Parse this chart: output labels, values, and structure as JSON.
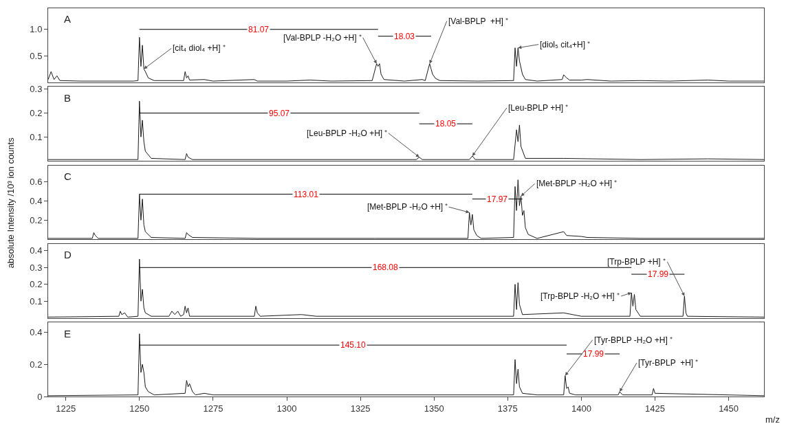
{
  "chart_data": [
    {
      "type": "line",
      "title": "A",
      "xlim": [
        1219,
        1462
      ],
      "ylim": [
        0,
        1.4
      ],
      "yticks": [
        0.5,
        {
          "value": 1.0,
          "label": "1.0"
        }
      ],
      "tick_labels": "y",
      "marker": "none",
      "series": [
        {
          "color": "#1a1a1a",
          "x": [
            1219,
            1220,
            1221,
            1222,
            1223,
            1230,
            1240,
            1248,
            1249.5,
            1250,
            1250.5,
            1251,
            1251.5,
            1252,
            1253,
            1255,
            1265,
            1265.5,
            1266,
            1266.5,
            1267,
            1272,
            1275,
            1289,
            1290,
            1300,
            1308,
            1315,
            1329,
            1330.5,
            1331,
            1331.5,
            1332,
            1333,
            1340,
            1346,
            1347,
            1348.5,
            1349,
            1349.5,
            1350.5,
            1352,
            1365,
            1377,
            1377.5,
            1378,
            1378.5,
            1379,
            1380,
            1381,
            1385,
            1393.5,
            1394,
            1395,
            1396,
            1400,
            1402,
            1410,
            1420,
            1430,
            1443,
            1450,
            1462
          ],
          "values": [
            0.05,
            0.2,
            0.05,
            0.12,
            0.03,
            0.02,
            0.02,
            0.02,
            0.03,
            0.85,
            0.3,
            0.7,
            0.25,
            0.2,
            0.08,
            0.03,
            0.03,
            0.2,
            0.08,
            0.12,
            0.04,
            0.05,
            0.02,
            0.05,
            0.02,
            0.02,
            0.04,
            0.02,
            0.03,
            0.35,
            0.3,
            0.35,
            0.15,
            0.05,
            0.02,
            0.05,
            0.03,
            0.35,
            0.25,
            0.15,
            0.07,
            0.03,
            0.02,
            0.03,
            0.65,
            0.3,
            0.65,
            0.4,
            0.15,
            0.05,
            0.02,
            0.05,
            0.14,
            0.08,
            0.04,
            0.04,
            0.05,
            0.02,
            0.03,
            0.02,
            0.04,
            0.02,
            0.02
          ]
        },
        {
          "color": "#000000",
          "x": [
            1250,
            1331
          ],
          "values": [
            1.0,
            1.0
          ]
        },
        {
          "color": "#000000",
          "x": [
            1331,
            1349
          ],
          "values": [
            0.87,
            0.87
          ]
        }
      ],
      "annotations": [
        {
          "text": "81.07",
          "x": 1290.5,
          "y": 1.0
        },
        {
          "text": "18.03",
          "x": 1340,
          "y": 0.87
        },
        {
          "text": "[cit₄ diol₄ +H] ⁺",
          "x": 1251.5,
          "y": 0.25
        },
        {
          "text": "[Val-BPLP -H₂O +H] ⁺",
          "x": 1330.5,
          "y": 0.35
        },
        {
          "text": "[Val-BPLP  +H] ⁺",
          "x": 1348.5,
          "y": 0.35
        },
        {
          "text": "[diol₅ cit₄+H] ⁺",
          "x": 1378.5,
          "y": 0.65
        }
      ]
    },
    {
      "type": "line",
      "title": "B",
      "xlim": [
        1219,
        1462
      ],
      "ylim": [
        0,
        0.31
      ],
      "yticks": [
        0.1,
        0.2,
        0.3
      ],
      "tick_labels": "y",
      "marker": "none",
      "series": [
        {
          "color": "#1a1a1a",
          "x": [
            1219,
            1230,
            1249.5,
            1250,
            1250.5,
            1251,
            1251.5,
            1252,
            1254,
            1265.5,
            1266,
            1266.5,
            1268,
            1300,
            1344,
            1345,
            1346,
            1362,
            1363,
            1364,
            1377,
            1378,
            1378.5,
            1379,
            1379.5,
            1381,
            1394,
            1420,
            1443,
            1462
          ],
          "values": [
            0.005,
            0.005,
            0.005,
            0.25,
            0.1,
            0.17,
            0.08,
            0.04,
            0.01,
            0.005,
            0.03,
            0.015,
            0.005,
            0.005,
            0.005,
            0.015,
            0.005,
            0.005,
            0.02,
            0.005,
            0.005,
            0.13,
            0.08,
            0.15,
            0.06,
            0.01,
            0.01,
            0.005,
            0.008,
            0.005
          ]
        },
        {
          "color": "#000000",
          "x": [
            1250,
            1345
          ],
          "values": [
            0.2,
            0.2
          ]
        },
        {
          "color": "#000000",
          "x": [
            1345,
            1363
          ],
          "values": [
            0.155,
            0.155
          ]
        }
      ],
      "annotations": [
        {
          "text": "95.07",
          "x": 1297.5,
          "y": 0.2
        },
        {
          "text": "18.05",
          "x": 1354,
          "y": 0.155
        },
        {
          "text": "[Leu-BPLP -H₂O +H] ⁺",
          "x": 1345,
          "y": 0.015
        },
        {
          "text": "[Leu-BPLP +H] ⁺",
          "x": 1363,
          "y": 0.02
        }
      ]
    },
    {
      "type": "line",
      "title": "C",
      "ylabel": "absolute Intensity /10³ ion counts",
      "xlim": [
        1219,
        1462
      ],
      "ylim": [
        0,
        0.77
      ],
      "yticks": [
        0.2,
        0.4,
        0.6
      ],
      "tick_labels": "y",
      "marker": "none",
      "series": [
        {
          "color": "#1a1a1a",
          "x": [
            1219,
            1234,
            1234.5,
            1235,
            1236,
            1249.5,
            1250,
            1250.5,
            1251,
            1251.5,
            1252,
            1254,
            1265.5,
            1266,
            1266.5,
            1268,
            1290,
            1330,
            1361.5,
            1362,
            1362.5,
            1363,
            1363.5,
            1364.5,
            1366,
            1377,
            1377.5,
            1378,
            1378.5,
            1379,
            1379.5,
            1380,
            1380.5,
            1381,
            1382,
            1385,
            1394,
            1395,
            1400,
            1402,
            1420,
            1462
          ],
          "values": [
            0.01,
            0.01,
            0.07,
            0.04,
            0.01,
            0.01,
            0.47,
            0.2,
            0.42,
            0.15,
            0.08,
            0.02,
            0.01,
            0.07,
            0.05,
            0.02,
            0.01,
            0.01,
            0.01,
            0.28,
            0.15,
            0.26,
            0.1,
            0.04,
            0.01,
            0.02,
            0.55,
            0.3,
            0.62,
            0.35,
            0.45,
            0.25,
            0.3,
            0.12,
            0.05,
            0.01,
            0.08,
            0.04,
            0.03,
            0.02,
            0.01,
            0.01
          ]
        },
        {
          "color": "#000000",
          "x": [
            1250,
            1363
          ],
          "values": [
            0.47,
            0.47
          ]
        },
        {
          "color": "#000000",
          "x": [
            1363,
            1380
          ],
          "values": [
            0.42,
            0.42
          ]
        }
      ],
      "annotations": [
        {
          "text": "113.01",
          "x": 1306.5,
          "y": 0.47
        },
        {
          "text": "17.97",
          "x": 1371.5,
          "y": 0.42
        },
        {
          "text": "[Met-BPLP -H₂O +H] ⁺",
          "x": 1362,
          "y": 0.28
        },
        {
          "text": "[Met-BPLP -H₂O +H] ⁺",
          "x": 1379.5,
          "y": 0.45
        }
      ]
    },
    {
      "type": "line",
      "title": "D",
      "xlim": [
        1219,
        1462
      ],
      "ylim": [
        0,
        0.44
      ],
      "yticks": [
        0.1,
        0.2,
        0.3,
        0.4
      ],
      "tick_labels": "y",
      "marker": "none",
      "series": [
        {
          "color": "#1a1a1a",
          "x": [
            1219,
            1243,
            1243.5,
            1244,
            1245,
            1246,
            1249.5,
            1250,
            1250.5,
            1251,
            1251.5,
            1252,
            1254,
            1260,
            1261,
            1262,
            1263,
            1264,
            1265,
            1265.5,
            1266,
            1266.5,
            1267,
            1289,
            1289.5,
            1290,
            1291,
            1305,
            1310,
            1377,
            1377.5,
            1378,
            1378.5,
            1379,
            1380,
            1394,
            1400,
            1416.5,
            1417,
            1417.5,
            1418,
            1418.5,
            1420,
            1434.5,
            1435,
            1435.5,
            1436,
            1462
          ],
          "values": [
            0.005,
            0.01,
            0.04,
            0.02,
            0.03,
            0.005,
            0.01,
            0.35,
            0.1,
            0.17,
            0.06,
            0.03,
            0.01,
            0.01,
            0.04,
            0.02,
            0.04,
            0.01,
            0.02,
            0.07,
            0.03,
            0.06,
            0.01,
            0.01,
            0.07,
            0.03,
            0.01,
            0.02,
            0.01,
            0.01,
            0.2,
            0.05,
            0.21,
            0.08,
            0.02,
            0.03,
            0.01,
            0.01,
            0.15,
            0.07,
            0.14,
            0.05,
            0.01,
            0.01,
            0.13,
            0.03,
            0.01,
            0.005
          ]
        },
        {
          "color": "#000000",
          "x": [
            1250,
            1417
          ],
          "values": [
            0.3,
            0.3
          ]
        },
        {
          "color": "#000000",
          "x": [
            1417,
            1435
          ],
          "values": [
            0.26,
            0.26
          ]
        }
      ],
      "annotations": [
        {
          "text": "168.08",
          "x": 1333.5,
          "y": 0.3
        },
        {
          "text": "17.99",
          "x": 1426,
          "y": 0.26
        },
        {
          "text": "[Trp-BPLP +H] ⁺",
          "x": 1435,
          "y": 0.13
        },
        {
          "text": "[Trp-BPLP -H₂O +H] ⁺",
          "x": 1417,
          "y": 0.15
        }
      ]
    },
    {
      "type": "line",
      "title": "E",
      "xlabel": "m/z",
      "xlim": [
        1219,
        1462
      ],
      "ylim": [
        0,
        0.46
      ],
      "xticks": [
        1225,
        1250,
        1275,
        1300,
        1325,
        1350,
        1375,
        1400,
        1425,
        1450
      ],
      "yticks": [
        0,
        0.2,
        0.4
      ],
      "marker": "none",
      "series": [
        {
          "color": "#1a1a1a",
          "x": [
            1219,
            1249.5,
            1250,
            1250.5,
            1251,
            1251.5,
            1252,
            1253,
            1255,
            1265.5,
            1266,
            1266.5,
            1267,
            1268,
            1269,
            1272,
            1275,
            1377,
            1377.5,
            1378,
            1378.5,
            1379,
            1380,
            1385,
            1394,
            1394.5,
            1395,
            1395.5,
            1396,
            1398,
            1412.5,
            1413,
            1414,
            1424,
            1424.5,
            1425,
            1462
          ],
          "values": [
            0.005,
            0.01,
            0.39,
            0.15,
            0.2,
            0.15,
            0.06,
            0.03,
            0.01,
            0.02,
            0.1,
            0.06,
            0.08,
            0.03,
            0.01,
            0.02,
            0.01,
            0.01,
            0.23,
            0.08,
            0.17,
            0.06,
            0.02,
            0.01,
            0.01,
            0.13,
            0.05,
            0.06,
            0.02,
            0.01,
            0.01,
            0.03,
            0.01,
            0.01,
            0.05,
            0.02,
            0.005
          ]
        },
        {
          "color": "#000000",
          "x": [
            1250,
            1395
          ],
          "values": [
            0.32,
            0.32
          ]
        },
        {
          "color": "#000000",
          "x": [
            1395,
            1413
          ],
          "values": [
            0.265,
            0.265
          ]
        }
      ],
      "annotations": [
        {
          "text": "145.10",
          "x": 1322.5,
          "y": 0.32
        },
        {
          "text": "17.99",
          "x": 1404,
          "y": 0.265
        },
        {
          "text": "[Tyr-BPLP -H₂O +H] ⁺",
          "x": 1394.5,
          "y": 0.13
        },
        {
          "text": "[Tyr-BPLP  +H] ⁺",
          "x": 1413,
          "y": 0.03
        }
      ]
    }
  ]
}
